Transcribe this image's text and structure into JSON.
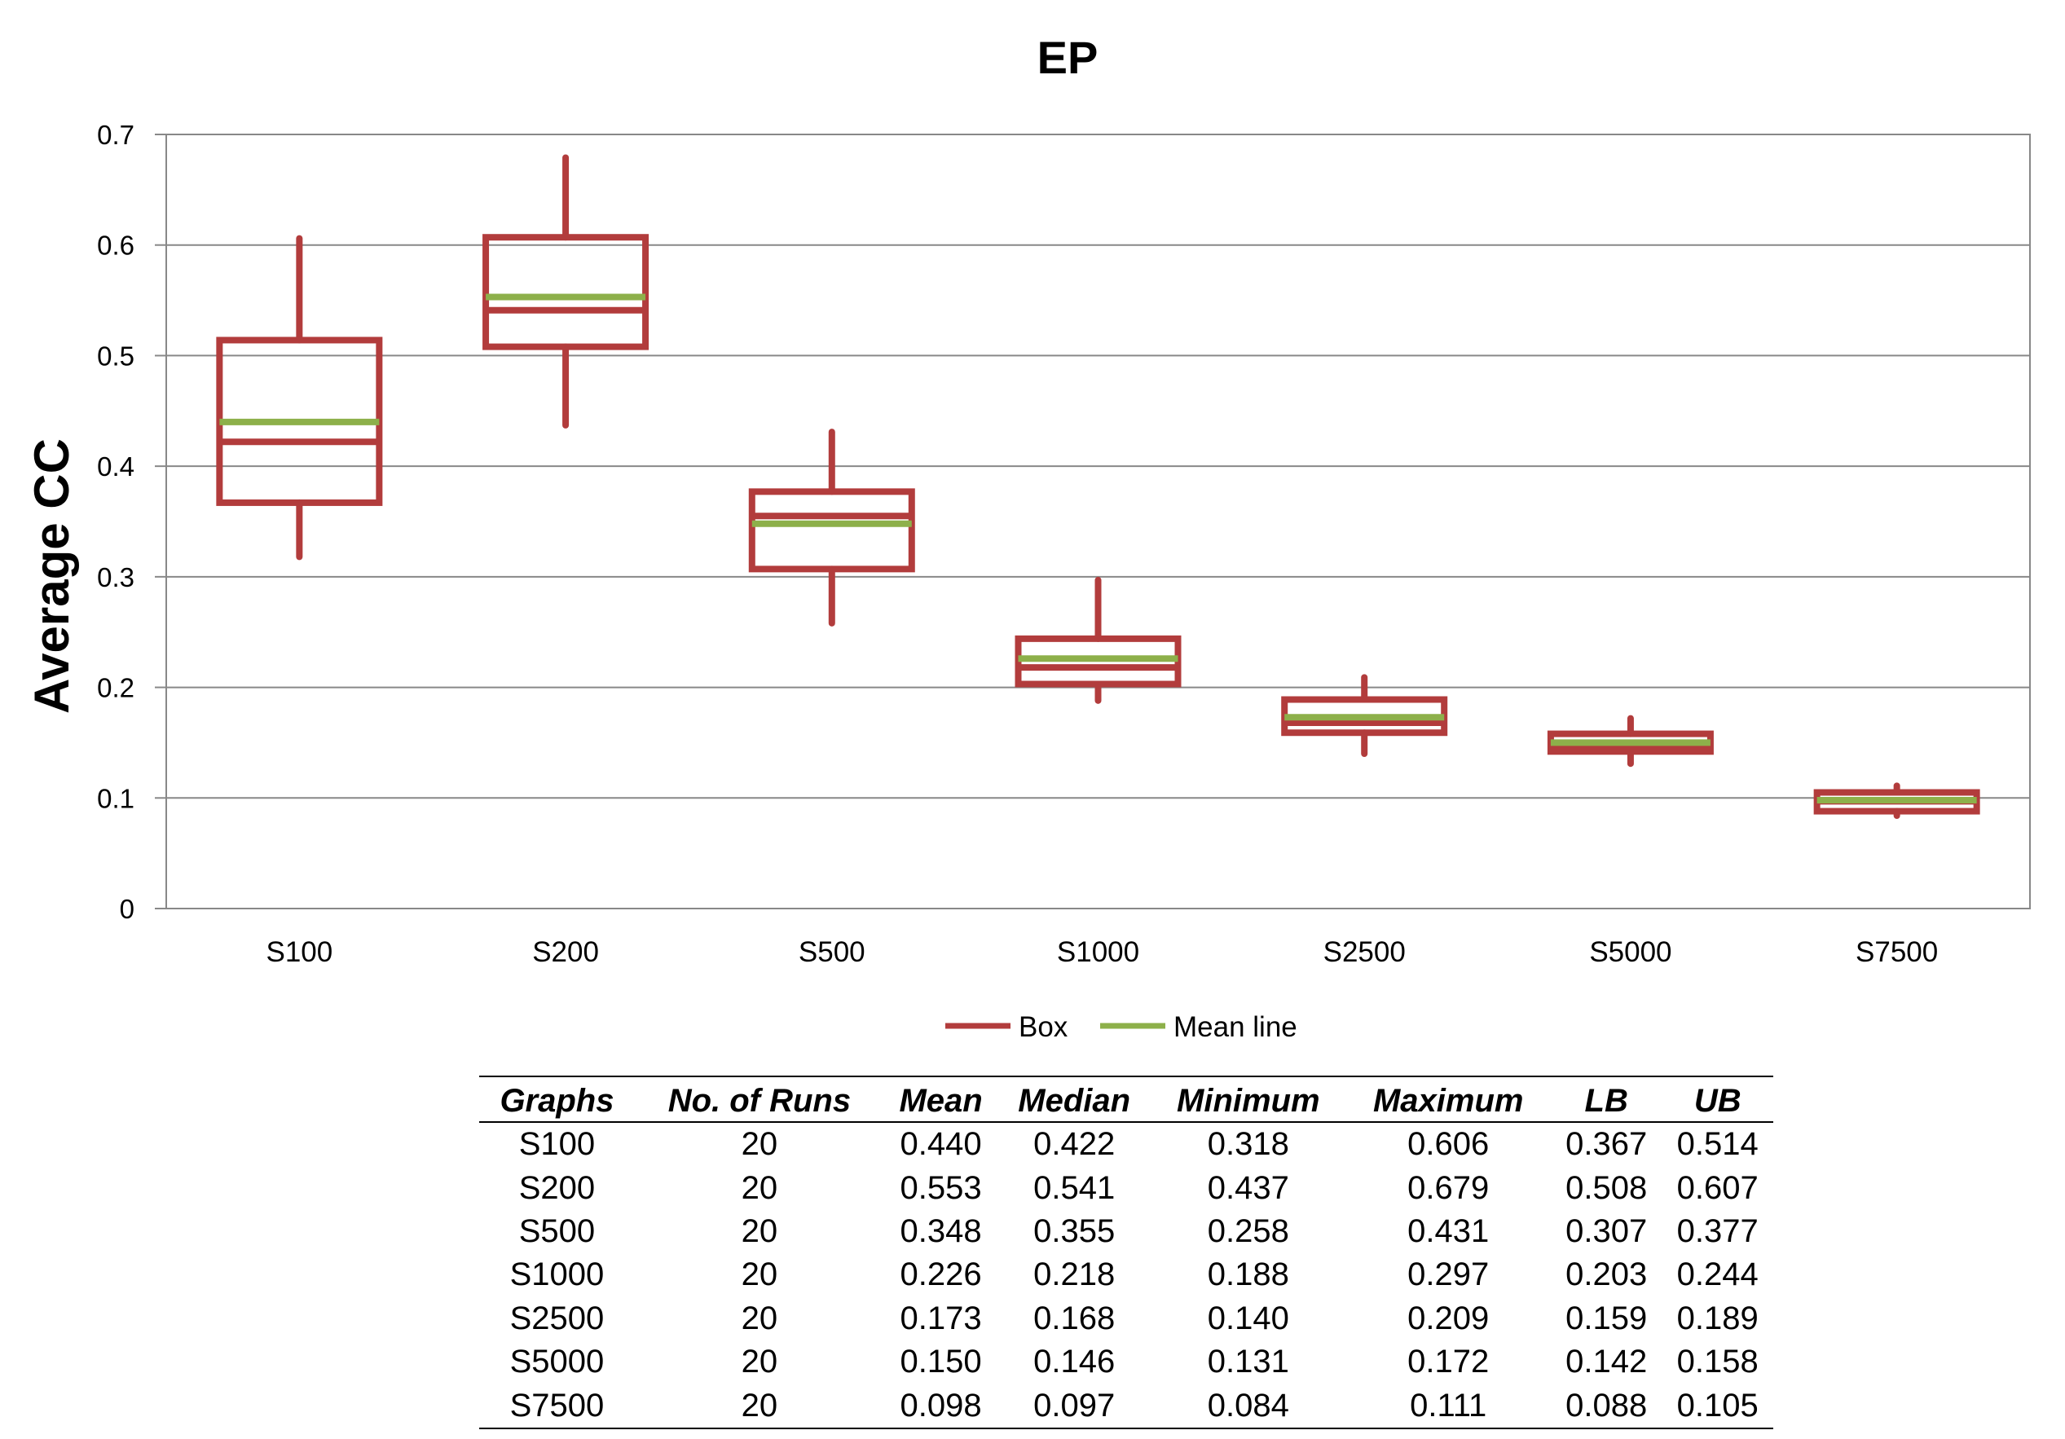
{
  "chart_data": {
    "type": "box",
    "title": "EP",
    "xlabel": "",
    "ylabel": "Average CC",
    "ylim": [
      0,
      0.7
    ],
    "yticks": [
      "0",
      "0.1",
      "0.2",
      "0.3",
      "0.4",
      "0.5",
      "0.6",
      "0.7"
    ],
    "grid": true,
    "legend_position": "bottom",
    "categories": [
      "S100",
      "S200",
      "S500",
      "S1000",
      "S2500",
      "S5000",
      "S7500"
    ],
    "series": [
      {
        "name": "Box",
        "color": "#B23C3C",
        "min": [
          0.318,
          0.437,
          0.258,
          0.188,
          0.14,
          0.131,
          0.084
        ],
        "lb": [
          0.367,
          0.508,
          0.307,
          0.203,
          0.159,
          0.142,
          0.088
        ],
        "median": [
          0.422,
          0.541,
          0.355,
          0.218,
          0.168,
          0.146,
          0.097
        ],
        "ub": [
          0.514,
          0.607,
          0.377,
          0.244,
          0.189,
          0.158,
          0.105
        ],
        "max": [
          0.606,
          0.679,
          0.431,
          0.297,
          0.209,
          0.172,
          0.111
        ]
      },
      {
        "name": "Mean line",
        "color": "#8DB04A",
        "values": [
          0.44,
          0.553,
          0.348,
          0.226,
          0.173,
          0.15,
          0.098
        ]
      }
    ]
  },
  "table": {
    "headers": [
      "Graphs",
      "No. of Runs",
      "Mean",
      "Median",
      "Minimum",
      "Maximum",
      "LB",
      "UB"
    ],
    "rows": [
      [
        "S100",
        "20",
        "0.440",
        "0.422",
        "0.318",
        "0.606",
        "0.367",
        "0.514"
      ],
      [
        "S200",
        "20",
        "0.553",
        "0.541",
        "0.437",
        "0.679",
        "0.508",
        "0.607"
      ],
      [
        "S500",
        "20",
        "0.348",
        "0.355",
        "0.258",
        "0.431",
        "0.307",
        "0.377"
      ],
      [
        "S1000",
        "20",
        "0.226",
        "0.218",
        "0.188",
        "0.297",
        "0.203",
        "0.244"
      ],
      [
        "S2500",
        "20",
        "0.173",
        "0.168",
        "0.140",
        "0.209",
        "0.159",
        "0.189"
      ],
      [
        "S5000",
        "20",
        "0.150",
        "0.146",
        "0.131",
        "0.172",
        "0.142",
        "0.158"
      ],
      [
        "S7500",
        "20",
        "0.098",
        "0.097",
        "0.084",
        "0.111",
        "0.088",
        "0.105"
      ]
    ]
  }
}
